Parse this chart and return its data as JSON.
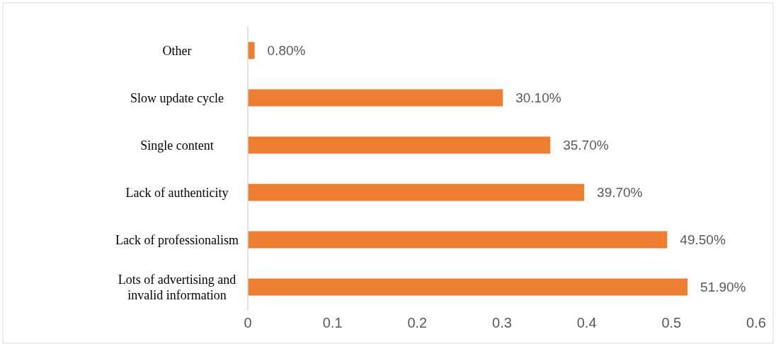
{
  "chart_data": {
    "type": "bar",
    "orientation": "horizontal",
    "categories": [
      "Other",
      "Slow update cycle",
      "Single content",
      "Lack of authenticity",
      "Lack of professionalism",
      "Lots of advertising and invalid information"
    ],
    "values": [
      0.008,
      0.301,
      0.357,
      0.397,
      0.495,
      0.519
    ],
    "value_labels": [
      "0.80%",
      "30.10%",
      "35.70%",
      "39.70%",
      "49.50%",
      "51.90%"
    ],
    "color": "#ed7d31",
    "xlim": [
      0,
      0.6
    ],
    "xticks": [
      0,
      0.1,
      0.2,
      0.3,
      0.4,
      0.5,
      0.6
    ],
    "grid": false
  }
}
